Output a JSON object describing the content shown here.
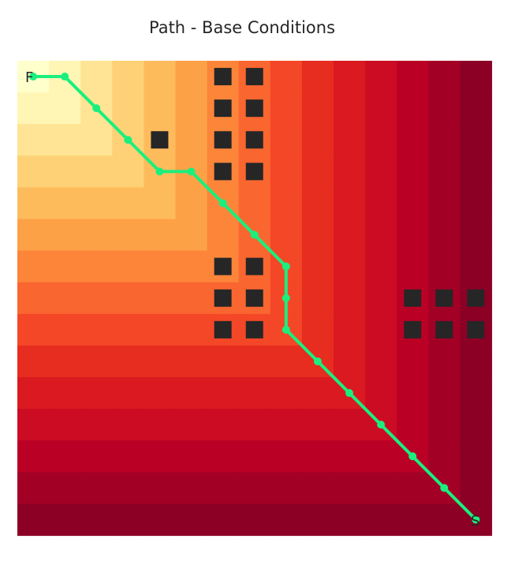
{
  "chart_data": {
    "type": "heatmap",
    "title": "Path - Base Conditions",
    "grid_size": [
      15,
      15
    ],
    "axes_visible": false,
    "colormap": "YlOrRd",
    "value_scale_note": "cell value = max(|x - 0|, |y - 0|), i.e. distance ring from the F corner (row 0, col 0); light yellow = 0, dark red = 14",
    "cell_values": [
      [
        0,
        1,
        2,
        3,
        4,
        5,
        6,
        7,
        8,
        9,
        10,
        11,
        12,
        13,
        14
      ],
      [
        1,
        1,
        2,
        3,
        4,
        5,
        6,
        7,
        8,
        9,
        10,
        11,
        12,
        13,
        14
      ],
      [
        2,
        2,
        2,
        3,
        4,
        5,
        6,
        7,
        8,
        9,
        10,
        11,
        12,
        13,
        14
      ],
      [
        3,
        3,
        3,
        3,
        4,
        5,
        6,
        7,
        8,
        9,
        10,
        11,
        12,
        13,
        14
      ],
      [
        4,
        4,
        4,
        4,
        4,
        5,
        6,
        7,
        8,
        9,
        10,
        11,
        12,
        13,
        14
      ],
      [
        5,
        5,
        5,
        5,
        5,
        5,
        6,
        7,
        8,
        9,
        10,
        11,
        12,
        13,
        14
      ],
      [
        6,
        6,
        6,
        6,
        6,
        6,
        6,
        7,
        8,
        9,
        10,
        11,
        12,
        13,
        14
      ],
      [
        7,
        7,
        7,
        7,
        7,
        7,
        7,
        7,
        8,
        9,
        10,
        11,
        12,
        13,
        14
      ],
      [
        8,
        8,
        8,
        8,
        8,
        8,
        8,
        8,
        8,
        9,
        10,
        11,
        12,
        13,
        14
      ],
      [
        9,
        9,
        9,
        9,
        9,
        9,
        9,
        9,
        9,
        9,
        10,
        11,
        12,
        13,
        14
      ],
      [
        10,
        10,
        10,
        10,
        10,
        10,
        10,
        10,
        10,
        10,
        10,
        11,
        12,
        13,
        14
      ],
      [
        11,
        11,
        11,
        11,
        11,
        11,
        11,
        11,
        11,
        11,
        11,
        11,
        12,
        13,
        14
      ],
      [
        12,
        12,
        12,
        12,
        12,
        12,
        12,
        12,
        12,
        12,
        12,
        12,
        12,
        13,
        14
      ],
      [
        13,
        13,
        13,
        13,
        13,
        13,
        13,
        13,
        13,
        13,
        13,
        13,
        13,
        13,
        14
      ],
      [
        14,
        14,
        14,
        14,
        14,
        14,
        14,
        14,
        14,
        14,
        14,
        14,
        14,
        14,
        14
      ]
    ],
    "obstacles": [
      [
        6,
        0
      ],
      [
        7,
        0
      ],
      [
        6,
        1
      ],
      [
        7,
        1
      ],
      [
        4,
        2
      ],
      [
        6,
        2
      ],
      [
        7,
        2
      ],
      [
        6,
        3
      ],
      [
        7,
        3
      ],
      [
        6,
        6
      ],
      [
        7,
        6
      ],
      [
        6,
        7
      ],
      [
        7,
        7
      ],
      [
        12,
        7
      ],
      [
        13,
        7
      ],
      [
        14,
        7
      ],
      [
        6,
        8
      ],
      [
        7,
        8
      ],
      [
        12,
        8
      ],
      [
        13,
        8
      ],
      [
        14,
        8
      ]
    ],
    "path": [
      [
        0.5,
        0
      ],
      [
        1.5,
        0
      ],
      [
        2.5,
        1
      ],
      [
        3.5,
        2
      ],
      [
        4.5,
        3
      ],
      [
        5.5,
        3
      ],
      [
        6.5,
        4
      ],
      [
        7.5,
        5
      ],
      [
        8.5,
        6
      ],
      [
        8.5,
        7
      ],
      [
        8.5,
        8
      ],
      [
        9.5,
        9
      ],
      [
        10.5,
        10
      ],
      [
        11.5,
        11
      ],
      [
        12.5,
        12
      ],
      [
        13.5,
        13
      ],
      [
        14.5,
        14.5
      ]
    ],
    "start_label": "F",
    "end_label": "S",
    "path_color": "#1aef7e",
    "obstacle_color": "#262626"
  }
}
